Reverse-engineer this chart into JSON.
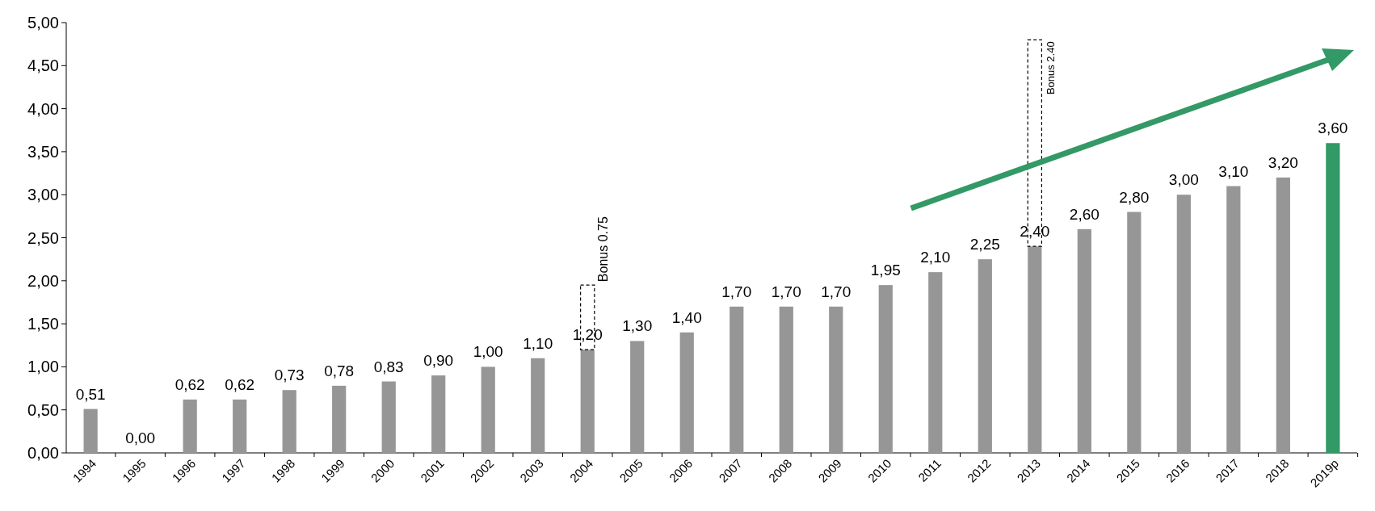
{
  "chart_data": {
    "type": "bar",
    "stacked": true,
    "categories": [
      "1994",
      "1995",
      "1996",
      "1997",
      "1998",
      "1999",
      "2000",
      "2001",
      "2002",
      "2003",
      "2004",
      "2005",
      "2006",
      "2007",
      "2008",
      "2009",
      "2010",
      "2011",
      "2012",
      "2013",
      "2014",
      "2015",
      "2016",
      "2017",
      "2018",
      "2019p"
    ],
    "ylim": [
      0,
      5
    ],
    "yticks": [
      {
        "value": 0,
        "label": "0,00"
      },
      {
        "value": 0.5,
        "label": "0,50"
      },
      {
        "value": 1,
        "label": "1,00"
      },
      {
        "value": 1.5,
        "label": "1,50"
      },
      {
        "value": 2,
        "label": "2,00"
      },
      {
        "value": 2.5,
        "label": "2,50"
      },
      {
        "value": 3,
        "label": "3,00"
      },
      {
        "value": 3.5,
        "label": "3,50"
      },
      {
        "value": 4,
        "label": "4,00"
      },
      {
        "value": 4.5,
        "label": "4,50"
      },
      {
        "value": 5,
        "label": "5,00"
      }
    ],
    "series": [
      {
        "colors": [
          "#969696",
          "#969696",
          "#969696",
          "#969696",
          "#969696",
          "#969696",
          "#969696",
          "#969696",
          "#969696",
          "#969696",
          "#969696",
          "#969696",
          "#969696",
          "#969696",
          "#969696",
          "#969696",
          "#969696",
          "#969696",
          "#969696",
          "#969696",
          "#969696",
          "#969696",
          "#969696",
          "#969696",
          "#969696",
          "#339966"
        ],
        "values": [
          0.51,
          0,
          0.62,
          0.62,
          0.73,
          0.78,
          0.83,
          0.9,
          1,
          1.1,
          1.2,
          1.3,
          1.4,
          1.7,
          1.7,
          1.7,
          1.95,
          2.1,
          2.25,
          2.4,
          2.6,
          2.8,
          3,
          3.1,
          3.2,
          3.6
        ],
        "value_labels": [
          "0,51",
          "0,00",
          "0,62",
          "0,62",
          "0,73",
          "0,78",
          "0,83",
          "0,90",
          "1,00",
          "1,10",
          "1,20",
          "1,30",
          "1,40",
          "1,70",
          "1,70",
          "1,70",
          "1,95",
          "2,10",
          "2,25",
          "2,40",
          "2,60",
          "2,80",
          "3,00",
          "3,10",
          "3,20",
          "3,60"
        ]
      },
      {
        "color": "#ffffff",
        "line_style": "dashed",
        "values": [
          null,
          null,
          null,
          null,
          null,
          null,
          null,
          null,
          null,
          null,
          0.75,
          null,
          null,
          null,
          null,
          null,
          null,
          null,
          null,
          2.4,
          null,
          null,
          null,
          null,
          null,
          null
        ],
        "value_labels": [
          null,
          null,
          null,
          null,
          null,
          null,
          null,
          null,
          null,
          null,
          "Bonus 0.75",
          null,
          null,
          null,
          null,
          null,
          null,
          null,
          null,
          "Bonus 2.40",
          null,
          null,
          null,
          null,
          null,
          null
        ]
      }
    ]
  }
}
